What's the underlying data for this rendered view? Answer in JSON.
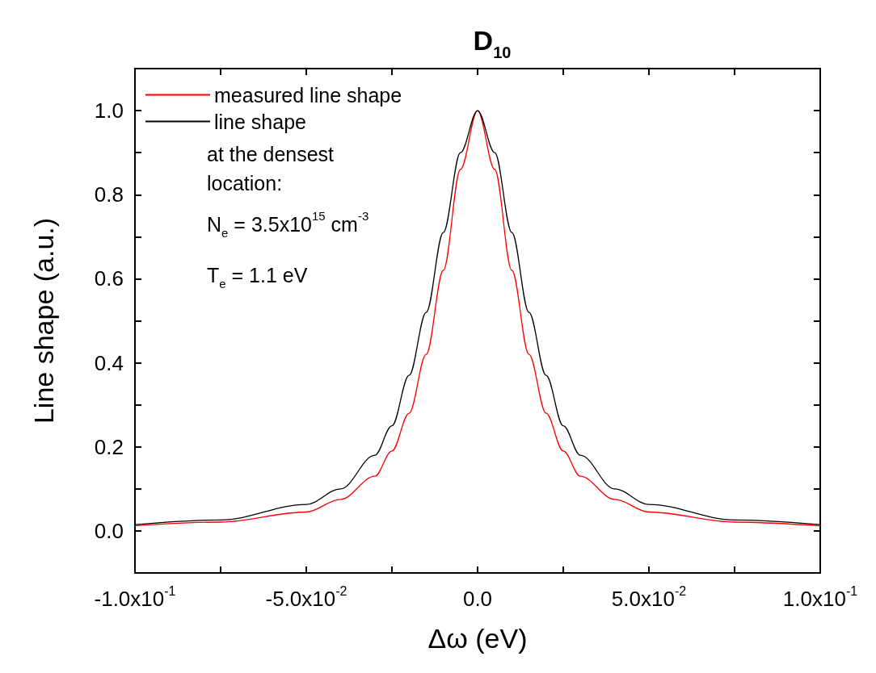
{
  "chart_data": {
    "type": "line",
    "title": "D$_{10}$",
    "xlabel": "Δω (eV)",
    "ylabel": "Line shape (a.u.)",
    "x": [
      -0.1,
      -0.075,
      -0.05,
      -0.04,
      -0.03,
      -0.025,
      -0.02,
      -0.015,
      -0.01,
      -0.005,
      0,
      0.005,
      0.01,
      0.015,
      0.02,
      0.025,
      0.03,
      0.04,
      0.05,
      0.075,
      0.1
    ],
    "series": [
      {
        "name": "measured line shape",
        "color": "#ff0000",
        "values": [
          0.012,
          0.021,
          0.045,
          0.075,
          0.13,
          0.19,
          0.28,
          0.42,
          0.62,
          0.86,
          1.0,
          0.86,
          0.62,
          0.42,
          0.28,
          0.19,
          0.13,
          0.075,
          0.045,
          0.021,
          0.012
        ]
      },
      {
        "name": "line shape",
        "color": "#000000",
        "values": [
          0.015,
          0.026,
          0.063,
          0.1,
          0.18,
          0.25,
          0.37,
          0.52,
          0.71,
          0.9,
          1.0,
          0.9,
          0.71,
          0.52,
          0.37,
          0.25,
          0.18,
          0.1,
          0.063,
          0.026,
          0.015
        ]
      }
    ],
    "annotations": [
      "at the densest location:",
      "N$_{e}$ = 3.5x10$^{15}$ cm$^{-3}$",
      "T$_{e}$ = 1.1 eV"
    ],
    "xlim": [
      -0.1,
      0.1
    ],
    "xticks": [
      {
        "value": -0.1,
        "label": "-1.0x10$^{-1}$"
      },
      {
        "value": -0.075,
        "label": null
      },
      {
        "value": -0.05,
        "label": "-5.0x10$^{-2}$"
      },
      {
        "value": -0.025,
        "label": null
      },
      {
        "value": 0,
        "label": "0.0"
      },
      {
        "value": 0.025,
        "label": null
      },
      {
        "value": 0.05,
        "label": "5.0x10$^{-2}$"
      },
      {
        "value": 0.075,
        "label": null
      },
      {
        "value": 0.1,
        "label": "1.0x10$^{-1}$"
      }
    ],
    "ylim": [
      -0.1,
      1.1
    ],
    "yticks": [
      {
        "value": 0,
        "label": "0.0"
      },
      {
        "value": 0.1,
        "label": null
      },
      {
        "value": 0.2,
        "label": "0.2"
      },
      {
        "value": 0.3,
        "label": null
      },
      {
        "value": 0.4,
        "label": "0.4"
      },
      {
        "value": 0.5,
        "label": null
      },
      {
        "value": 0.6,
        "label": "0.6"
      },
      {
        "value": 0.7,
        "label": null
      },
      {
        "value": 0.8,
        "label": "0.8"
      },
      {
        "value": 0.9,
        "label": null
      },
      {
        "value": 1,
        "label": "1.0"
      }
    ],
    "legend": "top left",
    "grid": false,
    "marker": "none",
    "line_style": "solid"
  }
}
